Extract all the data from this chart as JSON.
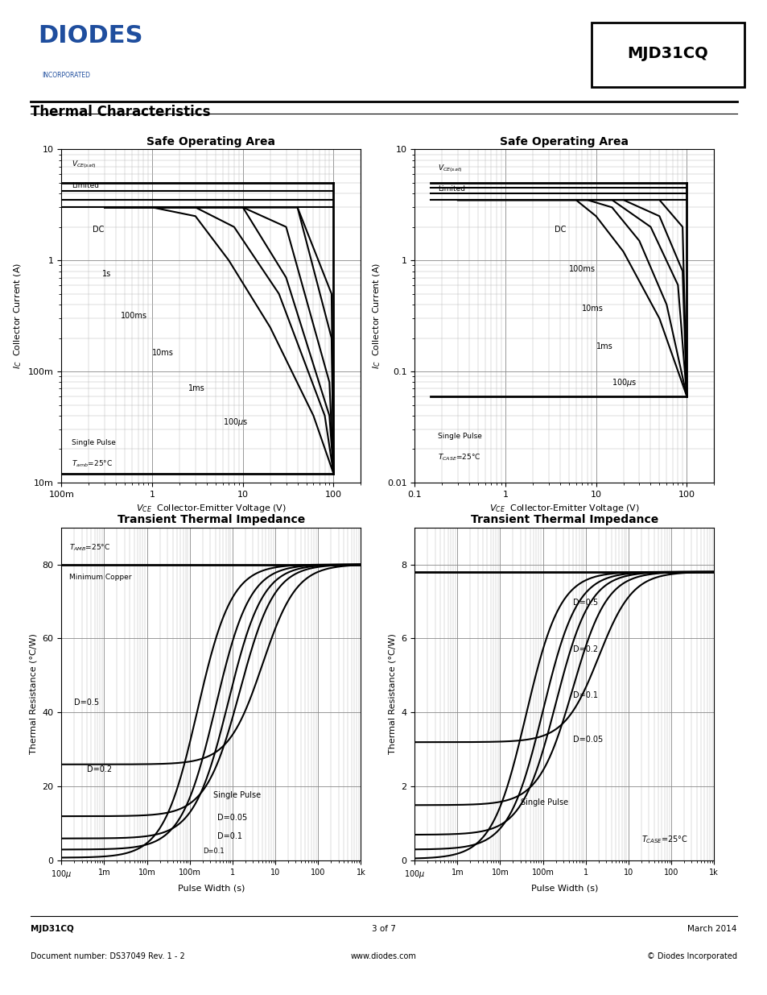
{
  "title": "Thermal Characteristics",
  "part_number": "MJD31CQ",
  "page_footer_left_1": "MJD31CQ",
  "page_footer_left_2": "Document number: DS37049 Rev. 1 - 2",
  "page_footer_center_1": "3 of 7",
  "page_footer_center_2": "www.diodes.com",
  "page_footer_right_1": "March 2014",
  "page_footer_right_2": "© Diodes Incorporated",
  "logo_text": "DIODES",
  "logo_sub": "INCORPORATED",
  "logo_color": "#1f4e9e",
  "colors": {
    "black": "#000000",
    "grid_major": "#888888",
    "grid_minor": "#bbbbbb",
    "blue": "#1f4e9e"
  }
}
